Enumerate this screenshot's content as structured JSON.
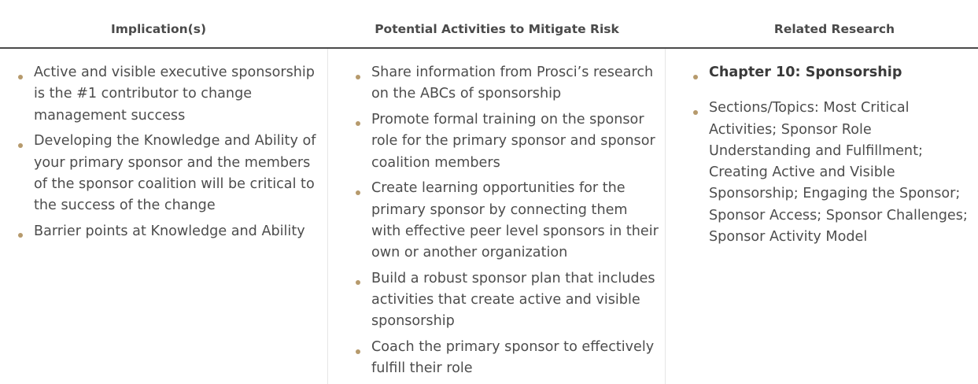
{
  "headers": {
    "implications": "Implication(s)",
    "activities": "Potential Activities to Mitigate Risk",
    "research": "Related Research"
  },
  "implications": [
    "Active and visible executive sponsorship is the #1 contributor to change management success",
    "Developing the Knowledge and Ability of your primary sponsor and the members of the sponsor coalition will be critical to the success of the change",
    "Barrier points at Knowledge and Ability"
  ],
  "activities": [
    "Share information from Prosci’s research on the ABCs of sponsorship",
    "Promote formal training on the sponsor role for the primary sponsor and sponsor coalition members",
    "Create learning opportunities for the primary sponsor by connecting them with effective peer level sponsors in their own or another organization",
    "Build a robust sponsor plan that includes activities that create active and visible sponsorship",
    "Coach the primary sponsor to effectively fulfill their role"
  ],
  "research": [
    "Chapter 10: Sponsorship",
    "Sections/Topics: Most Critical Activities; Sponsor Role Understanding and Fulfillment; Creating Active and Visible Sponsorship; Engaging the Sponsor; Sponsor Access; Sponsor Challenges; Sponsor Activity Model"
  ],
  "colors": {
    "bullet": "#b69a6c",
    "text": "#4d4d4d",
    "header_rule": "#4a4a4a"
  }
}
